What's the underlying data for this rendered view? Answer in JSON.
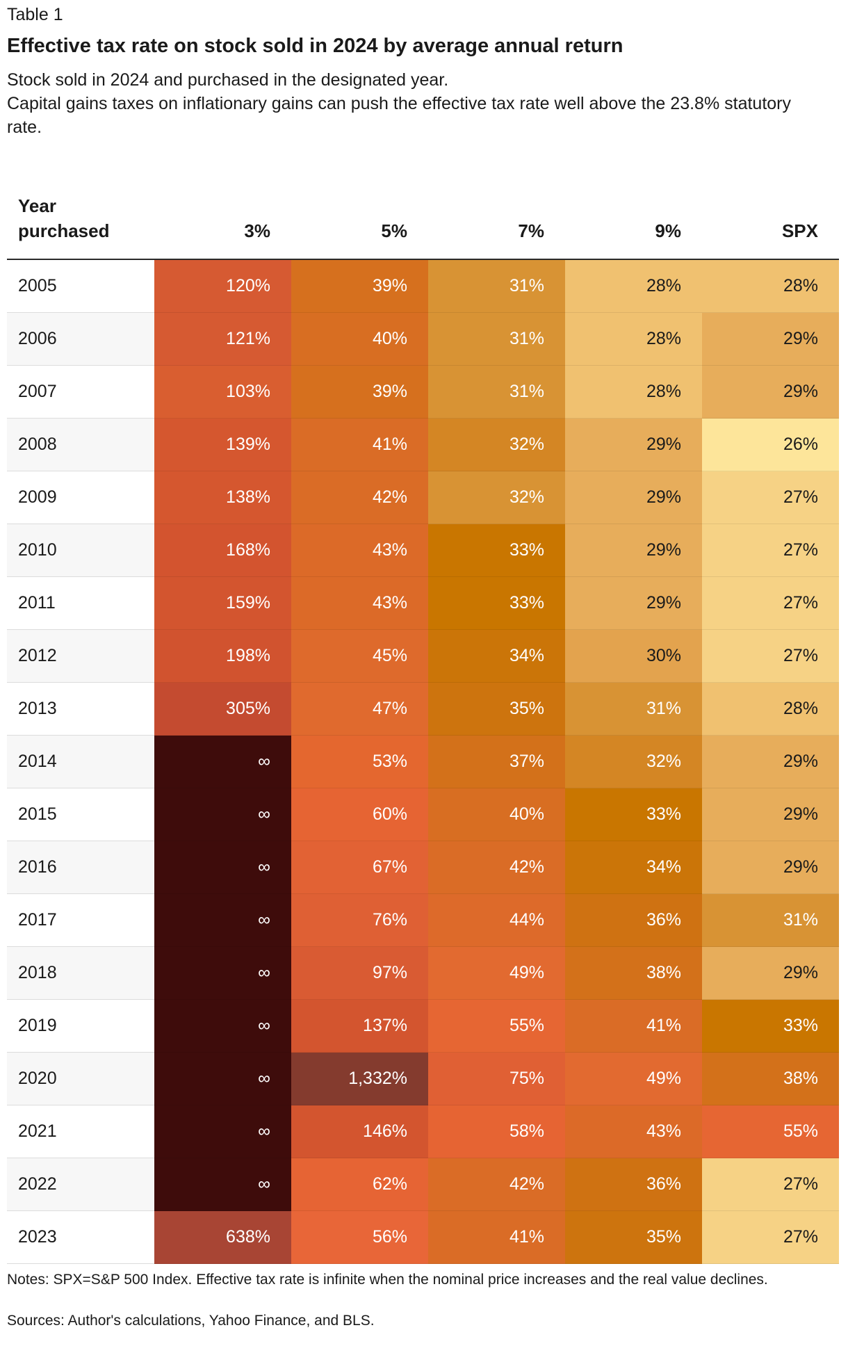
{
  "header": {
    "label": "Table 1",
    "title": "Effective tax rate on stock sold in 2024 by average annual return",
    "subtitle_lines": [
      "Stock sold in 2024 and purchased in the designated year.",
      "Capital gains taxes on inflationary gains can push the effective tax rate well above the 23.8% statutory rate."
    ]
  },
  "footer": {
    "notes": "Notes: SPX=S&P 500 Index. Effective tax rate is infinite when the nominal price increases and the real value declines.",
    "sources": "Sources: Author's calculations, Yahoo Finance, and BLS."
  },
  "chart_data": {
    "type": "heatmap",
    "title": "Effective tax rate on stock sold in 2024 by average annual return",
    "row_header": "Year purchased",
    "columns": [
      "3%",
      "5%",
      "7%",
      "9%",
      "SPX"
    ],
    "rows": [
      {
        "year": "2005",
        "cells": [
          "120%",
          "39%",
          "31%",
          "28%",
          "28%"
        ],
        "colors": [
          "#d65a32",
          "#d6701e",
          "#d89334",
          "#f0c170",
          "#f0c170"
        ]
      },
      {
        "year": "2006",
        "cells": [
          "121%",
          "40%",
          "31%",
          "28%",
          "29%"
        ],
        "colors": [
          "#d65a32",
          "#d86e22",
          "#d89334",
          "#f0c170",
          "#e7ad5b"
        ]
      },
      {
        "year": "2007",
        "cells": [
          "103%",
          "39%",
          "31%",
          "28%",
          "29%"
        ],
        "colors": [
          "#d95e30",
          "#d6701e",
          "#d89334",
          "#f0c170",
          "#e7ad5b"
        ]
      },
      {
        "year": "2008",
        "cells": [
          "139%",
          "41%",
          "32%",
          "29%",
          "26%"
        ],
        "colors": [
          "#d5572f",
          "#da6c26",
          "#d48624",
          "#e7ad5b",
          "#fde59a"
        ]
      },
      {
        "year": "2009",
        "cells": [
          "138%",
          "42%",
          "32%",
          "29%",
          "27%"
        ],
        "colors": [
          "#d5572f",
          "#da6c26",
          "#d89334",
          "#e7ad5b",
          "#f6d285"
        ]
      },
      {
        "year": "2010",
        "cells": [
          "168%",
          "43%",
          "33%",
          "29%",
          "27%"
        ],
        "colors": [
          "#d3542f",
          "#dc6a28",
          "#c97600",
          "#e7ad5b",
          "#f6d285"
        ]
      },
      {
        "year": "2011",
        "cells": [
          "159%",
          "43%",
          "33%",
          "29%",
          "27%"
        ],
        "colors": [
          "#d3552f",
          "#dc6a28",
          "#c97600",
          "#e7ad5b",
          "#f6d285"
        ]
      },
      {
        "year": "2012",
        "cells": [
          "198%",
          "45%",
          "34%",
          "30%",
          "27%"
        ],
        "colors": [
          "#d1532f",
          "#de6a2c",
          "#cb7508",
          "#e3a34e",
          "#f6d285"
        ]
      },
      {
        "year": "2013",
        "cells": [
          "305%",
          "47%",
          "35%",
          "31%",
          "28%"
        ],
        "colors": [
          "#c44b30",
          "#e06a2e",
          "#cd740e",
          "#d89334",
          "#f0c170"
        ]
      },
      {
        "year": "2014",
        "cells": [
          "∞",
          "53%",
          "37%",
          "32%",
          "29%"
        ],
        "colors": [
          "#3e0c0b",
          "#e4672f",
          "#d3711a",
          "#d48624",
          "#e7ad5b"
        ]
      },
      {
        "year": "2015",
        "cells": [
          "∞",
          "60%",
          "40%",
          "33%",
          "29%"
        ],
        "colors": [
          "#3e0c0b",
          "#e66433",
          "#d86e22",
          "#c97600",
          "#e7ad5b"
        ]
      },
      {
        "year": "2016",
        "cells": [
          "∞",
          "67%",
          "42%",
          "34%",
          "29%"
        ],
        "colors": [
          "#3e0c0b",
          "#e26234",
          "#da6c26",
          "#cb7508",
          "#e7ad5b"
        ]
      },
      {
        "year": "2017",
        "cells": [
          "∞",
          "76%",
          "44%",
          "36%",
          "31%"
        ],
        "colors": [
          "#3e0c0b",
          "#df6034",
          "#dd6a2a",
          "#cf7212",
          "#d89334"
        ]
      },
      {
        "year": "2018",
        "cells": [
          "∞",
          "97%",
          "49%",
          "38%",
          "29%"
        ],
        "colors": [
          "#3e0c0b",
          "#d95b33",
          "#e26a30",
          "#d3711a",
          "#e7ad5b"
        ]
      },
      {
        "year": "2019",
        "cells": [
          "∞",
          "137%",
          "55%",
          "41%",
          "33%"
        ],
        "colors": [
          "#3e0c0b",
          "#d3552f",
          "#e66633",
          "#da6c26",
          "#c97600"
        ]
      },
      {
        "year": "2020",
        "cells": [
          "∞",
          "1,332%",
          "75%",
          "49%",
          "38%"
        ],
        "colors": [
          "#3e0c0b",
          "#843b2e",
          "#e06034",
          "#e26a30",
          "#d3711a"
        ]
      },
      {
        "year": "2021",
        "cells": [
          "∞",
          "146%",
          "58%",
          "43%",
          "55%"
        ],
        "colors": [
          "#3e0c0b",
          "#d3552f",
          "#e66433",
          "#dc6a28",
          "#e66633"
        ]
      },
      {
        "year": "2022",
        "cells": [
          "∞",
          "62%",
          "42%",
          "36%",
          "27%"
        ],
        "colors": [
          "#3e0c0b",
          "#e66434",
          "#da6c26",
          "#cf7212",
          "#f6d285"
        ]
      },
      {
        "year": "2023",
        "cells": [
          "638%",
          "56%",
          "41%",
          "35%",
          "27%"
        ],
        "colors": [
          "#a84534",
          "#e86638",
          "#da6c26",
          "#cd740e",
          "#f6d285"
        ]
      }
    ],
    "dark_text_colors": [
      "#f0c170",
      "#e7ad5b",
      "#fde59a",
      "#f6d285",
      "#e3a34e",
      "#d89334",
      "#d48624",
      "#c97600",
      "#cb7508",
      "#cd740e",
      "#cf7212",
      "#d3711a",
      "#d6701e",
      "#d86e22"
    ]
  }
}
